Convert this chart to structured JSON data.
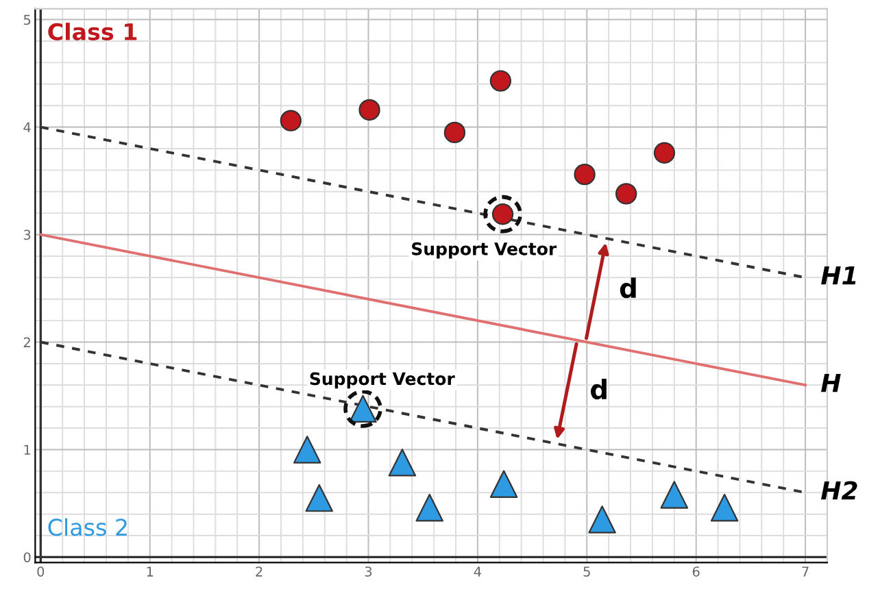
{
  "chart_data": {
    "type": "scatter",
    "xlim": [
      -0.05,
      7.2
    ],
    "ylim": [
      -0.05,
      5.1
    ],
    "xticks": [
      0,
      1,
      2,
      3,
      4,
      5,
      6,
      7
    ],
    "yticks": [
      0,
      1,
      2,
      3,
      4,
      5
    ],
    "grid": true,
    "legend": false,
    "series": [
      {
        "name": "Class 1",
        "marker": "circle",
        "color": "#c0181c",
        "x": [
          2.29,
          3.01,
          3.79,
          4.21,
          4.98,
          5.36,
          5.71,
          4.23
        ],
        "values": [
          4.06,
          4.16,
          3.95,
          4.43,
          3.56,
          3.38,
          3.76,
          3.19
        ]
      },
      {
        "name": "Class 2",
        "marker": "triangle",
        "color": "#2e9ae2",
        "x": [
          2.44,
          2.55,
          2.95,
          3.31,
          3.56,
          4.24,
          5.14,
          5.8,
          6.26
        ],
        "values": [
          1.0,
          0.55,
          1.38,
          0.88,
          0.46,
          0.68,
          0.35,
          0.58,
          0.46
        ]
      },
      {
        "name": "H1",
        "type": "line",
        "line_style": "dashed",
        "color": "#333333",
        "x": [
          0,
          7
        ],
        "values": [
          4,
          2.6
        ]
      },
      {
        "name": "H",
        "type": "line",
        "line_style": "solid",
        "color": "#e07070",
        "x": [
          0,
          7
        ],
        "values": [
          3,
          1.6
        ]
      },
      {
        "name": "H2",
        "type": "line",
        "line_style": "dashed",
        "color": "#333333",
        "x": [
          0,
          7
        ],
        "values": [
          2,
          0.6
        ]
      }
    ],
    "annotations": [
      {
        "text": "Support Vector",
        "x": 4.23,
        "y": 3.19
      },
      {
        "text": "Support Vector",
        "x": 2.95,
        "y": 1.38
      },
      {
        "text": "d",
        "x": 5.18,
        "y": 2.96
      },
      {
        "text": "d",
        "x": 4.72,
        "y": 1.06
      }
    ]
  }
}
